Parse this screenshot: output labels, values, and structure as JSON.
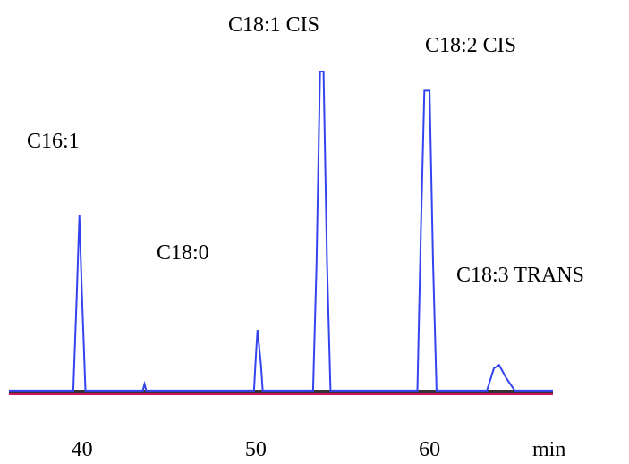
{
  "chart_data": {
    "type": "line",
    "annotations": [
      "C16:1",
      "C18:1 CIS",
      "C18:0",
      "C18:2 CIS",
      "C18:3 TRANS"
    ],
    "x": [
      35.8,
      39.5,
      39.7,
      39.85,
      40.0,
      40.2,
      43.5,
      43.6,
      43.7,
      49.9,
      50.0,
      50.1,
      50.3,
      50.4,
      53.3,
      53.5,
      53.7,
      53.9,
      54.1,
      54.3,
      59.3,
      59.5,
      59.7,
      60.0,
      60.2,
      60.4,
      63.3,
      63.7,
      64.0,
      64.4,
      64.9,
      67.1
    ],
    "values": [
      0,
      0,
      30,
      55,
      30,
      0,
      0,
      2,
      0,
      0,
      10,
      19,
      8,
      0,
      0,
      40,
      100,
      100,
      40,
      0,
      0,
      50,
      94,
      94,
      40,
      0,
      0,
      7,
      8,
      4,
      0,
      0
    ],
    "color": "#3344ee",
    "xlim": [
      35.8,
      67.1
    ],
    "xticks": [
      40,
      50,
      60
    ],
    "xlabel": "min",
    "ylim": [
      -2,
      100
    ]
  }
}
